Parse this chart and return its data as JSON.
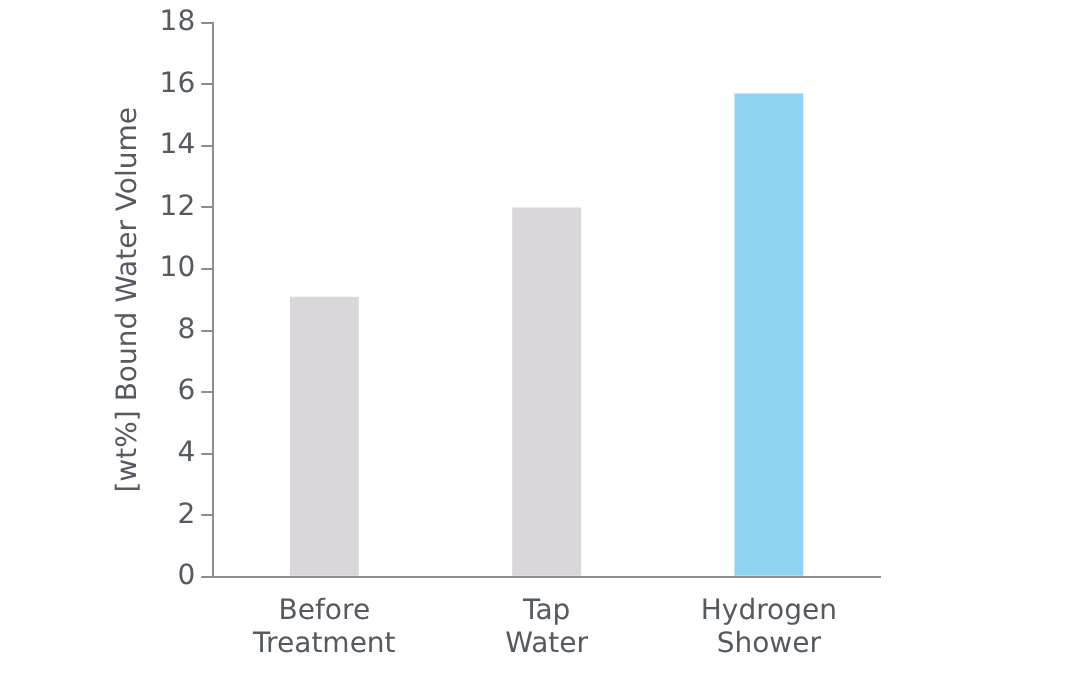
{
  "chart_data": {
    "type": "bar",
    "ylabel": "[wt%] Bound Water Volume",
    "categories": [
      "Before Treatment",
      "Tap Water",
      "Hydrogen Shower"
    ],
    "values": [
      9.1,
      12.0,
      15.7
    ],
    "colors": [
      "#d9d7da",
      "#d9d7da",
      "#8fd3f3"
    ],
    "ylim": [
      0,
      18
    ],
    "yticks": [
      0,
      2,
      4,
      6,
      8,
      10,
      12,
      14,
      16,
      18
    ],
    "grid": false,
    "legend": false
  }
}
